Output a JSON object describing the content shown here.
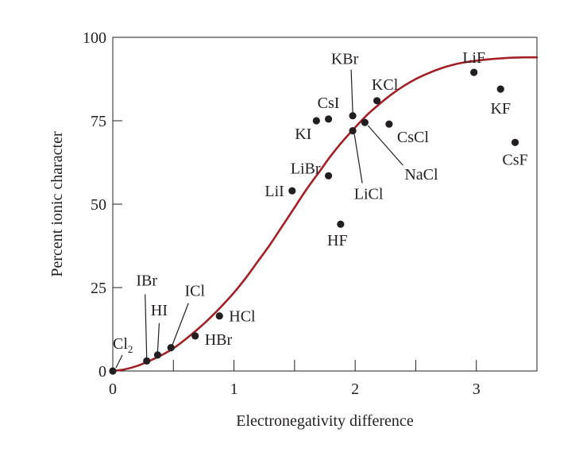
{
  "chart_data": {
    "type": "scatter",
    "title": "",
    "xlabel": "Electronegativity difference",
    "ylabel": "Percent ionic character",
    "xlim": [
      0,
      3.5
    ],
    "ylim": [
      0,
      100
    ],
    "xticks": [
      0,
      1,
      2,
      3
    ],
    "xtick_labels": [
      "0",
      "1",
      "2",
      "3"
    ],
    "yticks": [
      0,
      25,
      50,
      75,
      100
    ],
    "ytick_labels": [
      "0",
      "25",
      "50",
      "75",
      "100"
    ],
    "minor_xticks": [
      0.5,
      1.5,
      2.5
    ],
    "grid": false,
    "curve": {
      "color": "#a31f24",
      "points": [
        [
          0,
          0
        ],
        [
          0.1,
          0.5
        ],
        [
          0.2,
          1.5
        ],
        [
          0.3,
          3.0
        ],
        [
          0.4,
          4.7
        ],
        [
          0.5,
          6.8
        ],
        [
          0.6,
          9.5
        ],
        [
          0.7,
          12.5
        ],
        [
          0.8,
          15.8
        ],
        [
          0.9,
          19.5
        ],
        [
          1.0,
          23.5
        ],
        [
          1.1,
          28.0
        ],
        [
          1.2,
          33.0
        ],
        [
          1.3,
          38.0
        ],
        [
          1.4,
          43.5
        ],
        [
          1.5,
          49.0
        ],
        [
          1.6,
          54.5
        ],
        [
          1.7,
          59.5
        ],
        [
          1.8,
          64.5
        ],
        [
          1.9,
          69.0
        ],
        [
          2.0,
          73.0
        ],
        [
          2.1,
          76.8
        ],
        [
          2.2,
          80.0
        ],
        [
          2.3,
          82.9
        ],
        [
          2.4,
          85.4
        ],
        [
          2.5,
          87.5
        ],
        [
          2.6,
          89.2
        ],
        [
          2.7,
          90.6
        ],
        [
          2.8,
          91.7
        ],
        [
          2.9,
          92.5
        ],
        [
          3.0,
          93.0
        ],
        [
          3.1,
          93.4
        ],
        [
          3.2,
          93.7
        ],
        [
          3.3,
          93.9
        ],
        [
          3.4,
          94.0
        ],
        [
          3.5,
          94.0
        ]
      ]
    },
    "points": [
      {
        "label": "Cl",
        "sub": "2",
        "x": 0.0,
        "y": 0.0
      },
      {
        "label": "IBr",
        "x": 0.28,
        "y": 3.0
      },
      {
        "label": "HI",
        "x": 0.37,
        "y": 4.8
      },
      {
        "label": "ICl",
        "x": 0.48,
        "y": 7.0
      },
      {
        "label": "HBr",
        "x": 0.68,
        "y": 10.5
      },
      {
        "label": "HCl",
        "x": 0.88,
        "y": 16.5
      },
      {
        "label": "LiI",
        "x": 1.48,
        "y": 54.0
      },
      {
        "label": "LiBr",
        "x": 1.78,
        "y": 58.5
      },
      {
        "label": "HF",
        "x": 1.88,
        "y": 44.0
      },
      {
        "label": "KI",
        "x": 1.68,
        "y": 75.0
      },
      {
        "label": "CsI",
        "x": 1.78,
        "y": 75.5
      },
      {
        "label": "KBr",
        "x": 1.98,
        "y": 76.5
      },
      {
        "label": "LiCl",
        "x": 1.98,
        "y": 72.0
      },
      {
        "label": "NaCl",
        "x": 2.08,
        "y": 74.5
      },
      {
        "label": "KCl",
        "x": 2.18,
        "y": 81.0
      },
      {
        "label": "CsCl",
        "x": 2.28,
        "y": 74.0
      },
      {
        "label": "LiF",
        "x": 2.98,
        "y": 89.5
      },
      {
        "label": "KF",
        "x": 3.2,
        "y": 84.5
      },
      {
        "label": "CsF",
        "x": 3.32,
        "y": 68.5
      }
    ]
  }
}
